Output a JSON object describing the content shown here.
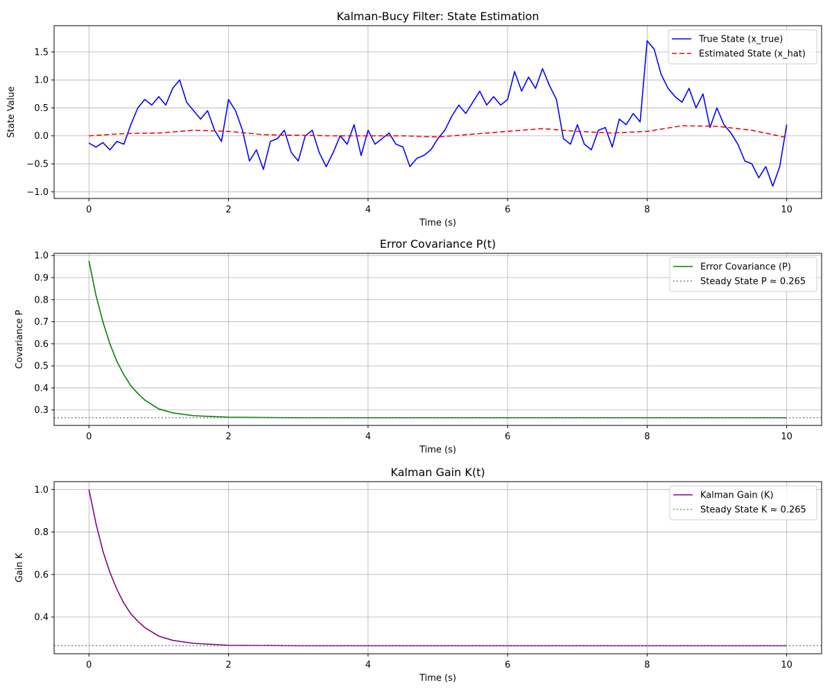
{
  "chart_data": [
    {
      "type": "line",
      "title": "Kalman-Bucy Filter: State Estimation",
      "xlabel": "Time (s)",
      "ylabel": "State Value",
      "xlim": [
        -0.5,
        10.5
      ],
      "ylim": [
        -1.12,
        1.97
      ],
      "xticks": [
        0,
        2,
        4,
        6,
        8,
        10
      ],
      "yticks": [
        -1.0,
        -0.5,
        0.0,
        0.5,
        1.0,
        1.5
      ],
      "ytick_labels": [
        "−1.0",
        "−0.5",
        "0.0",
        "0.5",
        "1.0",
        "1.5"
      ],
      "grid": true,
      "legend_position": "top-right",
      "series": [
        {
          "name": "True State (x_true)",
          "color": "#0000ff",
          "style": "solid",
          "x": [
            0,
            0.1,
            0.2,
            0.3,
            0.4,
            0.5,
            0.6,
            0.7,
            0.8,
            0.9,
            1.0,
            1.1,
            1.2,
            1.3,
            1.4,
            1.5,
            1.6,
            1.7,
            1.8,
            1.9,
            2.0,
            2.1,
            2.2,
            2.3,
            2.4,
            2.5,
            2.6,
            2.7,
            2.8,
            2.9,
            3.0,
            3.1,
            3.2,
            3.3,
            3.4,
            3.5,
            3.6,
            3.7,
            3.8,
            3.9,
            4.0,
            4.1,
            4.2,
            4.3,
            4.4,
            4.5,
            4.6,
            4.7,
            4.8,
            4.9,
            5.0,
            5.1,
            5.2,
            5.3,
            5.4,
            5.5,
            5.6,
            5.7,
            5.8,
            5.9,
            6.0,
            6.1,
            6.2,
            6.3,
            6.4,
            6.5,
            6.6,
            6.7,
            6.8,
            6.9,
            7.0,
            7.1,
            7.2,
            7.3,
            7.4,
            7.5,
            7.6,
            7.7,
            7.8,
            7.9,
            8.0,
            8.1,
            8.2,
            8.3,
            8.4,
            8.5,
            8.6,
            8.7,
            8.8,
            8.9,
            9.0,
            9.1,
            9.2,
            9.3,
            9.4,
            9.5,
            9.6,
            9.7,
            9.8,
            9.9,
            10.0
          ],
          "values": [
            -0.13,
            -0.2,
            -0.12,
            -0.25,
            -0.1,
            -0.15,
            0.2,
            0.5,
            0.65,
            0.55,
            0.7,
            0.55,
            0.85,
            1.0,
            0.6,
            0.45,
            0.3,
            0.45,
            0.1,
            -0.1,
            0.65,
            0.45,
            0.1,
            -0.45,
            -0.25,
            -0.6,
            -0.1,
            -0.05,
            0.1,
            -0.3,
            -0.45,
            0.0,
            0.1,
            -0.3,
            -0.55,
            -0.3,
            0.0,
            -0.15,
            0.2,
            -0.35,
            0.1,
            -0.15,
            -0.05,
            0.05,
            -0.15,
            -0.2,
            -0.55,
            -0.4,
            -0.35,
            -0.25,
            -0.05,
            0.1,
            0.35,
            0.55,
            0.4,
            0.6,
            0.8,
            0.55,
            0.7,
            0.55,
            0.65,
            1.15,
            0.8,
            1.05,
            0.85,
            1.2,
            0.9,
            0.65,
            -0.05,
            -0.15,
            0.2,
            -0.15,
            -0.25,
            0.1,
            0.15,
            -0.2,
            0.3,
            0.2,
            0.4,
            0.25,
            1.7,
            1.55,
            1.1,
            0.85,
            0.7,
            0.6,
            0.85,
            0.5,
            0.75,
            0.15,
            0.5,
            0.2,
            0.05,
            -0.15,
            -0.45,
            -0.5,
            -0.75,
            -0.55,
            -0.9,
            -0.55,
            0.2
          ]
        },
        {
          "name": "Estimated State (x_hat)",
          "color": "#ff0000",
          "style": "dashed",
          "x": [
            0,
            0.5,
            1.0,
            1.5,
            2.0,
            2.5,
            3.0,
            3.5,
            4.0,
            4.5,
            5.0,
            5.5,
            6.0,
            6.5,
            7.0,
            7.5,
            8.0,
            8.5,
            9.0,
            9.5,
            10.0
          ],
          "values": [
            0.0,
            0.04,
            0.05,
            0.1,
            0.08,
            0.02,
            0.01,
            0.0,
            0.0,
            0.0,
            -0.02,
            0.03,
            0.08,
            0.13,
            0.08,
            0.05,
            0.08,
            0.18,
            0.17,
            0.1,
            -0.03
          ]
        }
      ]
    },
    {
      "type": "line",
      "title": "Error Covariance P(t)",
      "xlabel": "Time (s)",
      "ylabel": "Covariance P",
      "xlim": [
        -0.5,
        10.5
      ],
      "ylim": [
        0.23,
        1.01
      ],
      "xticks": [
        0,
        2,
        4,
        6,
        8,
        10
      ],
      "yticks": [
        0.3,
        0.4,
        0.5,
        0.6,
        0.7,
        0.8,
        0.9,
        1.0
      ],
      "ytick_labels": [
        "0.3",
        "0.4",
        "0.5",
        "0.6",
        "0.7",
        "0.8",
        "0.9",
        "1.0"
      ],
      "grid": true,
      "legend_position": "top-right",
      "series": [
        {
          "name": "Error Covariance (P)",
          "color": "#008000",
          "style": "solid",
          "x": [
            0,
            0.1,
            0.2,
            0.3,
            0.4,
            0.5,
            0.6,
            0.7,
            0.8,
            1.0,
            1.2,
            1.5,
            2.0,
            3.0,
            4.0,
            6.0,
            8.0,
            10.0
          ],
          "values": [
            0.975,
            0.82,
            0.7,
            0.6,
            0.52,
            0.46,
            0.41,
            0.375,
            0.345,
            0.305,
            0.287,
            0.274,
            0.267,
            0.265,
            0.265,
            0.265,
            0.265,
            0.265
          ]
        },
        {
          "name": "Steady State P ≈ 0.265",
          "color": "#808080",
          "style": "dotted",
          "hline": 0.265
        }
      ]
    },
    {
      "type": "line",
      "title": "Kalman Gain K(t)",
      "xlabel": "Time (s)",
      "ylabel": "Gain K",
      "xlim": [
        -0.5,
        10.5
      ],
      "ylim": [
        0.227,
        1.037
      ],
      "xticks": [
        0,
        2,
        4,
        6,
        8,
        10
      ],
      "yticks": [
        0.4,
        0.6,
        0.8,
        1.0
      ],
      "ytick_labels": [
        "0.4",
        "0.6",
        "0.8",
        "1.0"
      ],
      "grid": true,
      "legend_position": "top-right",
      "series": [
        {
          "name": "Kalman Gain (K)",
          "color": "#800080",
          "style": "solid",
          "x": [
            0,
            0.1,
            0.2,
            0.3,
            0.4,
            0.5,
            0.6,
            0.7,
            0.8,
            1.0,
            1.2,
            1.5,
            2.0,
            3.0,
            4.0,
            6.0,
            8.0,
            10.0
          ],
          "values": [
            1.0,
            0.84,
            0.71,
            0.61,
            0.53,
            0.465,
            0.415,
            0.38,
            0.35,
            0.31,
            0.29,
            0.276,
            0.267,
            0.265,
            0.265,
            0.265,
            0.265,
            0.265
          ]
        },
        {
          "name": "Steady State K ≈ 0.265",
          "color": "#808080",
          "style": "dotted",
          "hline": 0.265
        }
      ]
    }
  ]
}
